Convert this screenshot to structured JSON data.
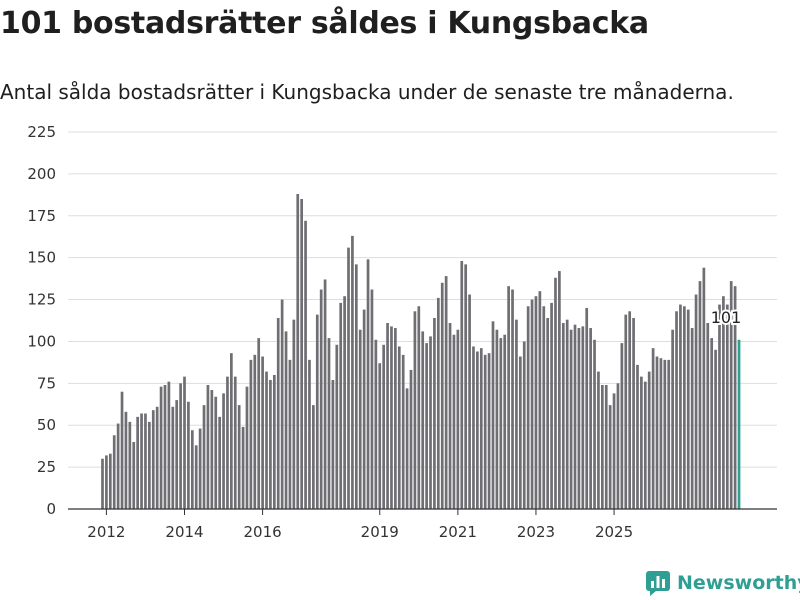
{
  "title": "101 bostadsrätter såldes i Kungsbacka",
  "subtitle": "Antal sålda bostadsrätter i Kungsbacka under de senaste tre månaderna.",
  "brand": {
    "name": "Newsworthy",
    "color": "#2f9e93"
  },
  "colors": {
    "bar": "#6f6e73",
    "highlight": "#2f9e93",
    "grid": "#dddddd"
  },
  "chart_data": {
    "type": "bar",
    "ylim": [
      0,
      225
    ],
    "yticks": [
      0,
      25,
      50,
      75,
      100,
      125,
      150,
      175,
      200,
      225
    ],
    "xticks": [
      {
        "label": "2012",
        "index": 1
      },
      {
        "label": "2014",
        "index": 21
      },
      {
        "label": "2016",
        "index": 41
      },
      {
        "label": "2019",
        "index": 71
      },
      {
        "label": "2021",
        "index": 91
      },
      {
        "label": "2023",
        "index": 111
      },
      {
        "label": "2025",
        "index": 131
      }
    ],
    "highlight_label": "101",
    "grid": true,
    "values": [
      30,
      32,
      33,
      44,
      51,
      70,
      58,
      52,
      40,
      55,
      57,
      57,
      52,
      59,
      61,
      73,
      74,
      76,
      61,
      65,
      75,
      79,
      64,
      47,
      38,
      48,
      62,
      74,
      71,
      67,
      55,
      69,
      79,
      93,
      79,
      62,
      49,
      73,
      89,
      92,
      102,
      91,
      82,
      77,
      80,
      114,
      125,
      106,
      89,
      113,
      188,
      185,
      172,
      89,
      62,
      116,
      131,
      137,
      102,
      77,
      98,
      123,
      127,
      156,
      163,
      146,
      107,
      119,
      149,
      131,
      101,
      87,
      98,
      111,
      109,
      108,
      97,
      92,
      72,
      83,
      118,
      121,
      106,
      99,
      103,
      114,
      126,
      135,
      139,
      111,
      104,
      107,
      148,
      146,
      128,
      97,
      94,
      96,
      92,
      93,
      112,
      107,
      102,
      104,
      133,
      131,
      113,
      91,
      100,
      121,
      125,
      127,
      130,
      121,
      114,
      123,
      138,
      142,
      111,
      113,
      107,
      110,
      108,
      109,
      120,
      108,
      101,
      82,
      74,
      74,
      62,
      69,
      75,
      99,
      116,
      118,
      114,
      86,
      79,
      76,
      82,
      96,
      91,
      90,
      89,
      89,
      107,
      118,
      122,
      121,
      119,
      108,
      128,
      136,
      144,
      111,
      102,
      95,
      122,
      127,
      122,
      136,
      133,
      101
    ]
  }
}
